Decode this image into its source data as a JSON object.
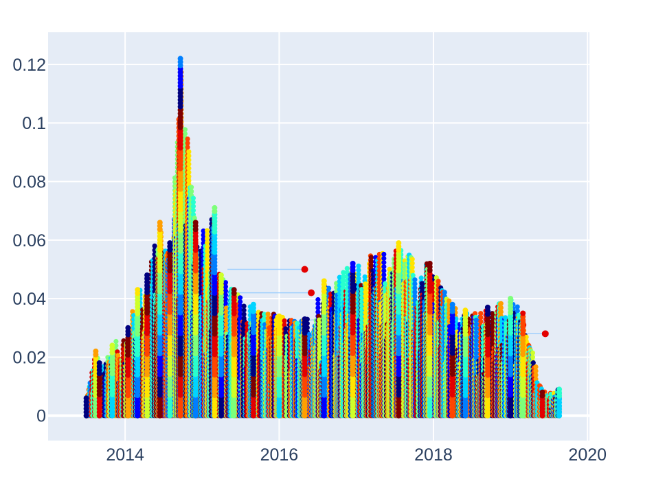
{
  "chart_data": {
    "type": "scatter",
    "title": "",
    "xlabel": "",
    "ylabel": "",
    "x_type": "date",
    "xlim": [
      "2013-01-01",
      "2020-01-10"
    ],
    "ylim": [
      -0.0085,
      0.131
    ],
    "x_ticks": [
      {
        "value": "2014-01-01",
        "label": "2014"
      },
      {
        "value": "2016-01-01",
        "label": "2016"
      },
      {
        "value": "2018-01-01",
        "label": "2018"
      },
      {
        "value": "2020-01-01",
        "label": "2020"
      }
    ],
    "y_ticks": [
      {
        "value": 0,
        "label": "0"
      },
      {
        "value": 0.02,
        "label": "0.02"
      },
      {
        "value": 0.04,
        "label": "0.04"
      },
      {
        "value": 0.06,
        "label": "0.06"
      },
      {
        "value": 0.08,
        "label": "0.08"
      },
      {
        "value": 0.1,
        "label": "0.1"
      },
      {
        "value": 0.12,
        "label": "0.12"
      }
    ],
    "grid": true,
    "legend": "none",
    "plot_background": "#e5ecf6",
    "colorscale": "jet",
    "colorscale_colors": [
      "#00007f",
      "#0000ff",
      "#007fff",
      "#00d4ff",
      "#29ffce",
      "#7dff7a",
      "#ceff29",
      "#ffe500",
      "#ff9f00",
      "#ff4500",
      "#e30000",
      "#7f0000"
    ],
    "series_note_count": 12,
    "series": [
      {
        "x": [
          "2013-07-01",
          "2013-08-15",
          "2013-09-01",
          "2013-11-01",
          "2014-01-15",
          "2014-03-01",
          "2014-04-15",
          "2014-06-15",
          "2014-08-01",
          "2014-09-20",
          "2014-12-01",
          "2015-03-01",
          "2015-04-01",
          "2015-06-01",
          "2015-09-01",
          "2016-01-01",
          "2016-05-01",
          "2016-08-01",
          "2016-12-15",
          "2017-07-20",
          "2017-12-15",
          "2018-04-01",
          "2018-06-01",
          "2018-09-15",
          "2019-01-01",
          "2019-03-01",
          "2019-06-01",
          "2019-08-20"
        ],
        "y": [
          0.006,
          0.022,
          0.018,
          0.024,
          0.03,
          0.043,
          0.048,
          0.066,
          0.059,
          0.122,
          0.066,
          0.071,
          0.048,
          0.043,
          0.038,
          0.034,
          0.033,
          0.046,
          0.052,
          0.059,
          0.052,
          0.038,
          0.036,
          0.037,
          0.04,
          0.035,
          0.008,
          0.009
        ]
      }
    ],
    "connector_lines": [
      {
        "x": [
          "2015-05-01",
          "2016-05-01"
        ],
        "y": [
          0.05,
          0.05
        ]
      },
      {
        "x": [
          "2015-03-15",
          "2016-06-01"
        ],
        "y": [
          0.042,
          0.042
        ]
      },
      {
        "x": [
          "2015-10-01",
          "2017-05-01"
        ],
        "y": [
          0.031,
          0.035
        ]
      },
      {
        "x": [
          "2016-07-01",
          "2018-01-01"
        ],
        "y": [
          0.032,
          0.035
        ]
      },
      {
        "x": [
          "2017-10-01",
          "2019-06-15"
        ],
        "y": [
          0.029,
          0.028
        ]
      },
      {
        "x": [
          "2018-05-01",
          "2019-03-01"
        ],
        "y": [
          0.033,
          0.031
        ]
      }
    ]
  }
}
